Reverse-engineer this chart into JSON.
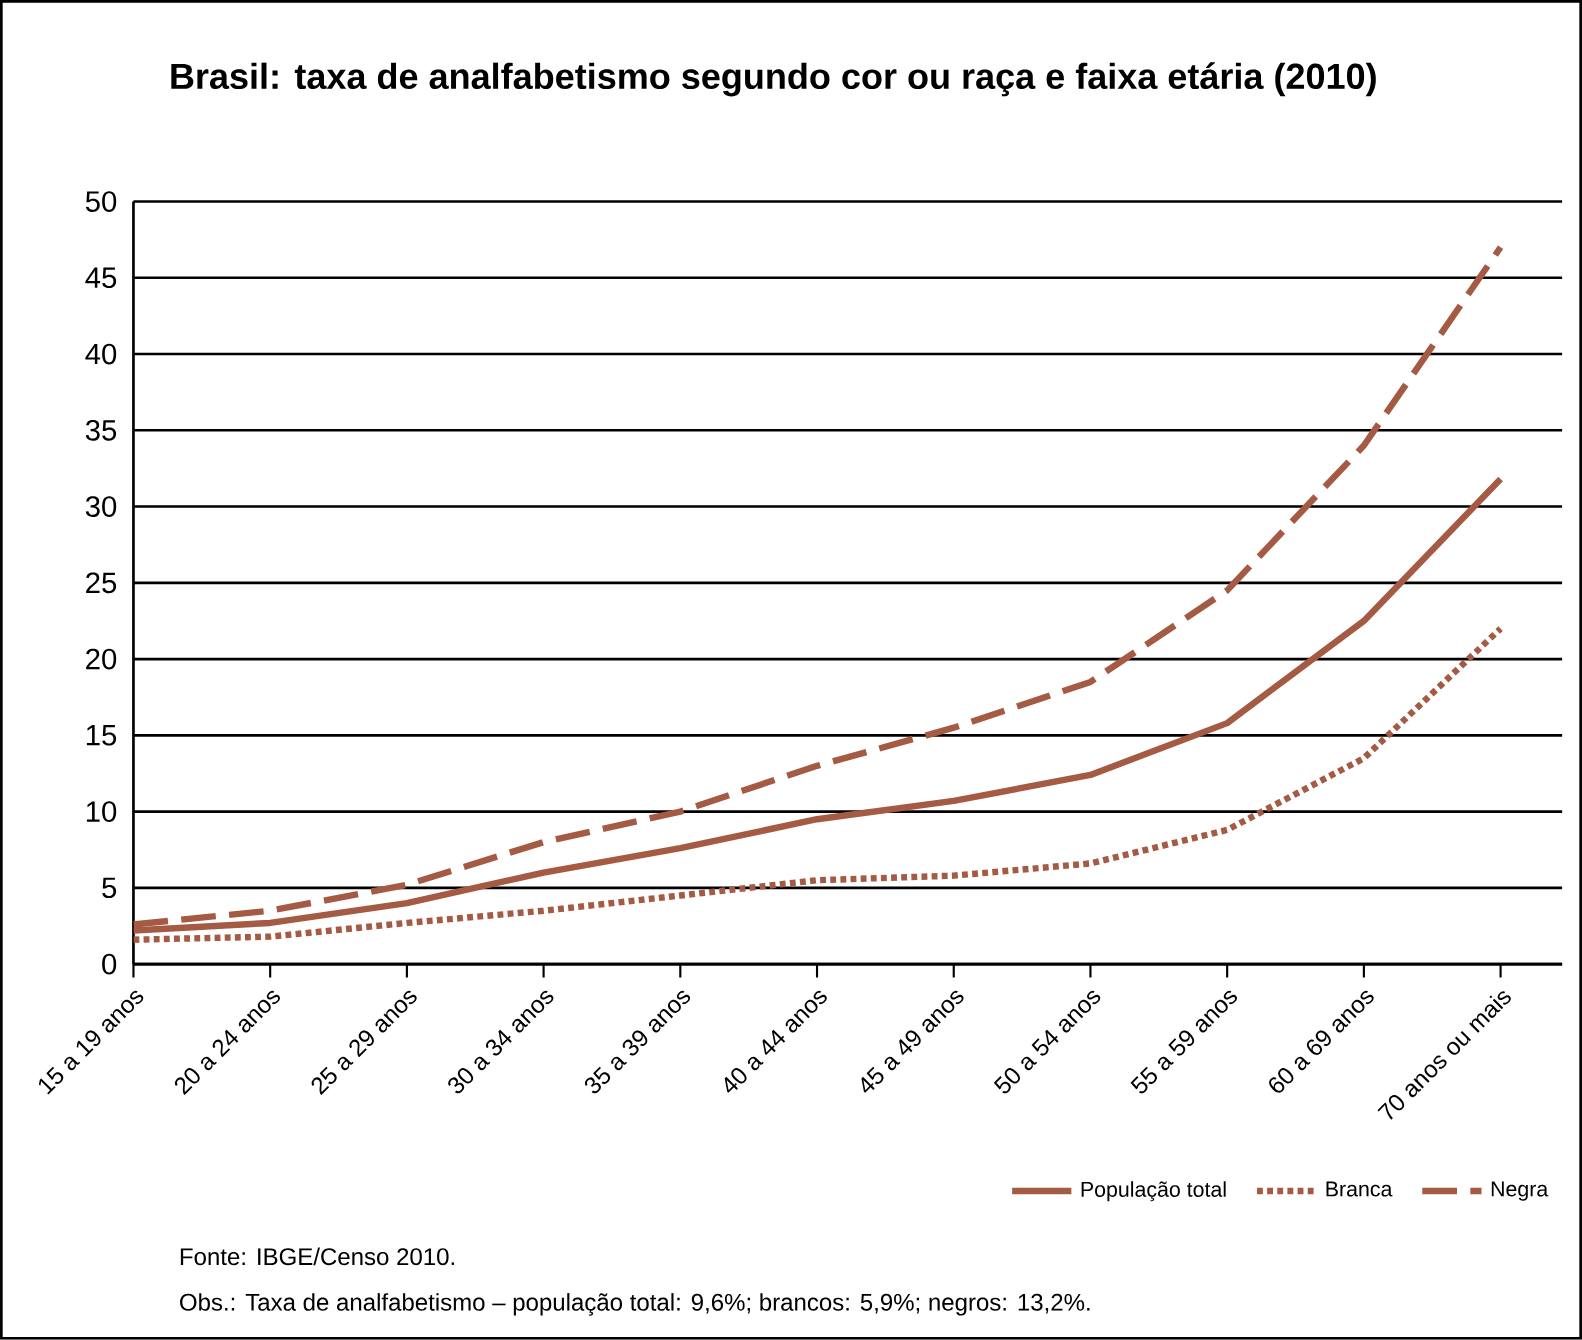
{
  "chart_data": {
    "type": "line",
    "title": "Brasil: taxa de analfabetismo segundo cor ou raça e faixa etária (2010)",
    "categories": [
      "15 a 19 anos",
      "20 a 24 anos",
      "25 a 29 anos",
      "30 a 34 anos",
      "35 a 39 anos",
      "40 a 44 anos",
      "45 a 49 anos",
      "50 a 54 anos",
      "55 a 59 anos",
      "60 a 69 anos",
      "70 anos ou mais"
    ],
    "series": [
      {
        "name": "População total",
        "color": "#a55a44",
        "line_style": "solid",
        "values": [
          2.2,
          2.7,
          4.0,
          6.0,
          7.6,
          9.5,
          10.7,
          12.4,
          15.8,
          22.5,
          31.8
        ]
      },
      {
        "name": "Branca",
        "color": "#a55a44",
        "line_style": "dotted",
        "values": [
          1.6,
          1.8,
          2.7,
          3.5,
          4.5,
          5.5,
          5.8,
          6.6,
          8.8,
          13.5,
          22.0
        ]
      },
      {
        "name": "Negra",
        "color": "#a55a44",
        "line_style": "dashed",
        "values": [
          2.6,
          3.5,
          5.2,
          8.0,
          10.0,
          13.0,
          15.5,
          18.5,
          24.5,
          34.0,
          47.0
        ]
      }
    ],
    "ylim": [
      0,
      50
    ],
    "yticks": [
      0,
      5,
      10,
      15,
      20,
      25,
      30,
      35,
      40,
      45,
      50
    ],
    "grid": "y",
    "legend": "bottom right",
    "annotations": [
      "Fonte: IBGE/Censo 2010.",
      "Obs.: Taxa de analfabetismo – população total: 9,6%; brancos: 5,9%; negros: 13,2%."
    ]
  }
}
